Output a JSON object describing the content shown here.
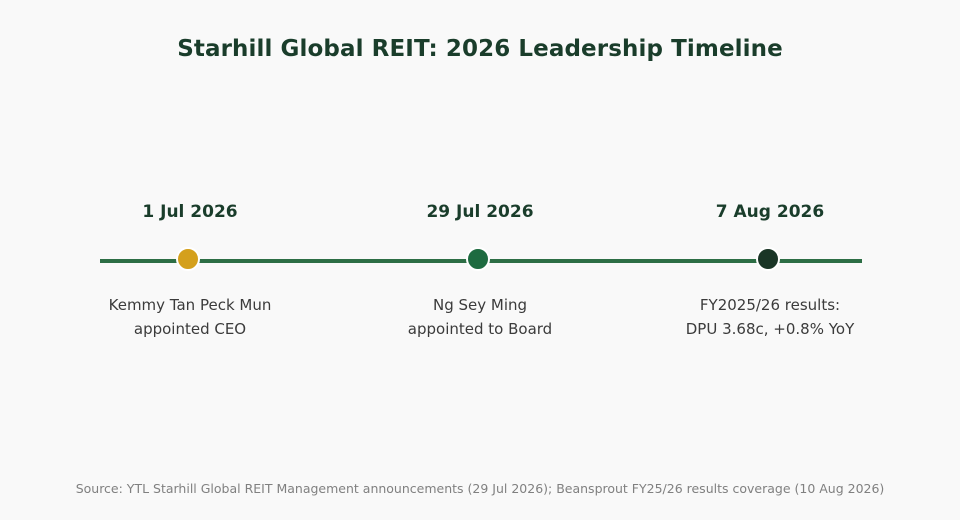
{
  "title": "Starhill Global REIT: 2026 Leadership Timeline",
  "events": [
    {
      "date": "1 Jul 2026",
      "description_lines": [
        "Kemmy Tan Peck Mun",
        "appointed CEO"
      ],
      "color": "#d4a01c"
    },
    {
      "date": "29 Jul 2026",
      "description_lines": [
        "Ng Sey Ming",
        "appointed to Board"
      ],
      "color": "#1e6b40"
    },
    {
      "date": "7 Aug 2026",
      "description_lines": [
        "FY2025/26 results:",
        "DPU 3.68c, +0.8% YoY"
      ],
      "color": "#1a3526"
    }
  ],
  "line_color": "#2d6e45",
  "source": "Source: YTL Starhill Global REIT Management announcements (29 Jul 2026); Beansprout FY25/26 results coverage (10 Aug 2026)"
}
